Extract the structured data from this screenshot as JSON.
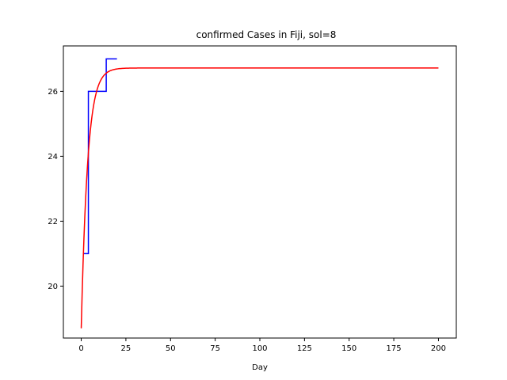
{
  "chart_data": {
    "type": "line",
    "title": "confirmed Cases in Fiji, sol=8",
    "xlabel": "Day",
    "ylabel": "",
    "xlim": [
      -10,
      210
    ],
    "ylim": [
      18.4,
      27.4
    ],
    "x_ticks": [
      0,
      25,
      50,
      75,
      100,
      125,
      150,
      175,
      200
    ],
    "y_ticks": [
      20,
      22,
      24,
      26
    ],
    "x_tick_labels": [
      "0",
      "25",
      "50",
      "75",
      "100",
      "125",
      "150",
      "175",
      "200"
    ],
    "y_tick_labels": [
      "20",
      "22",
      "24",
      "26"
    ],
    "grid": false,
    "legend": "none",
    "series": [
      {
        "color": "#0000ff",
        "style": "steps",
        "x": [
          1,
          2,
          3,
          4,
          5,
          6,
          7,
          8,
          9,
          10,
          11,
          12,
          13,
          14,
          15,
          16,
          17,
          18,
          19,
          20
        ],
        "y": [
          21,
          21,
          21,
          26,
          26,
          26,
          26,
          26,
          26,
          26,
          26,
          26,
          26,
          27,
          27,
          27,
          27,
          27,
          27,
          27
        ]
      },
      {
        "color": "#ff0000",
        "style": "curve",
        "model": "saturating exponential",
        "start_value": 18.7,
        "plateau": 26.72,
        "rate_per_day": 0.28,
        "x_range": [
          0,
          200
        ]
      }
    ]
  }
}
